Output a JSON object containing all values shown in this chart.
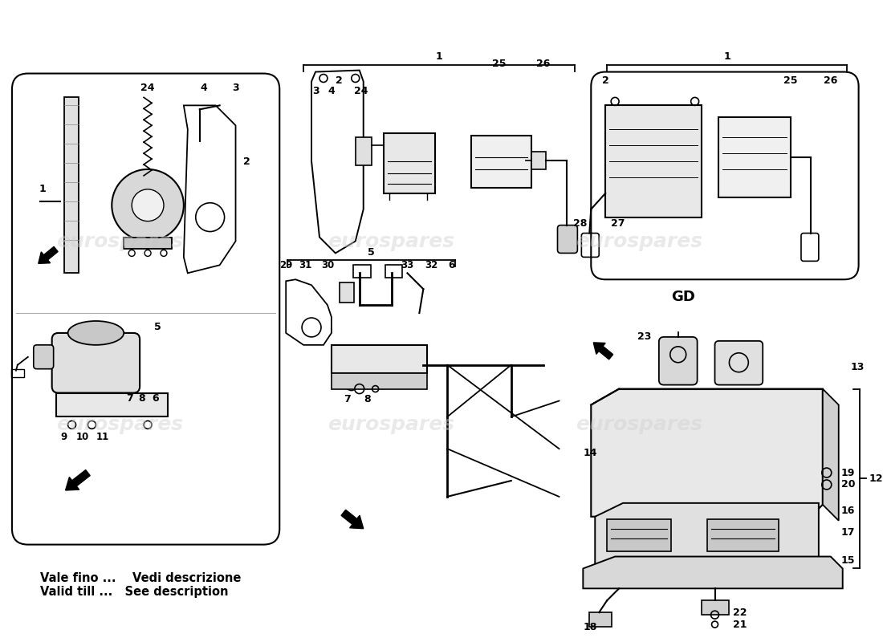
{
  "background_color": "#ffffff",
  "footnote_line1": "Vale fino ...    Vedi descrizione",
  "footnote_line2": "Valid till ...   See description",
  "gd_label": "GD",
  "watermark_text": "eurospares",
  "watermark_color": "#d0d0d0",
  "lc": "#000000",
  "lw": 1.3
}
